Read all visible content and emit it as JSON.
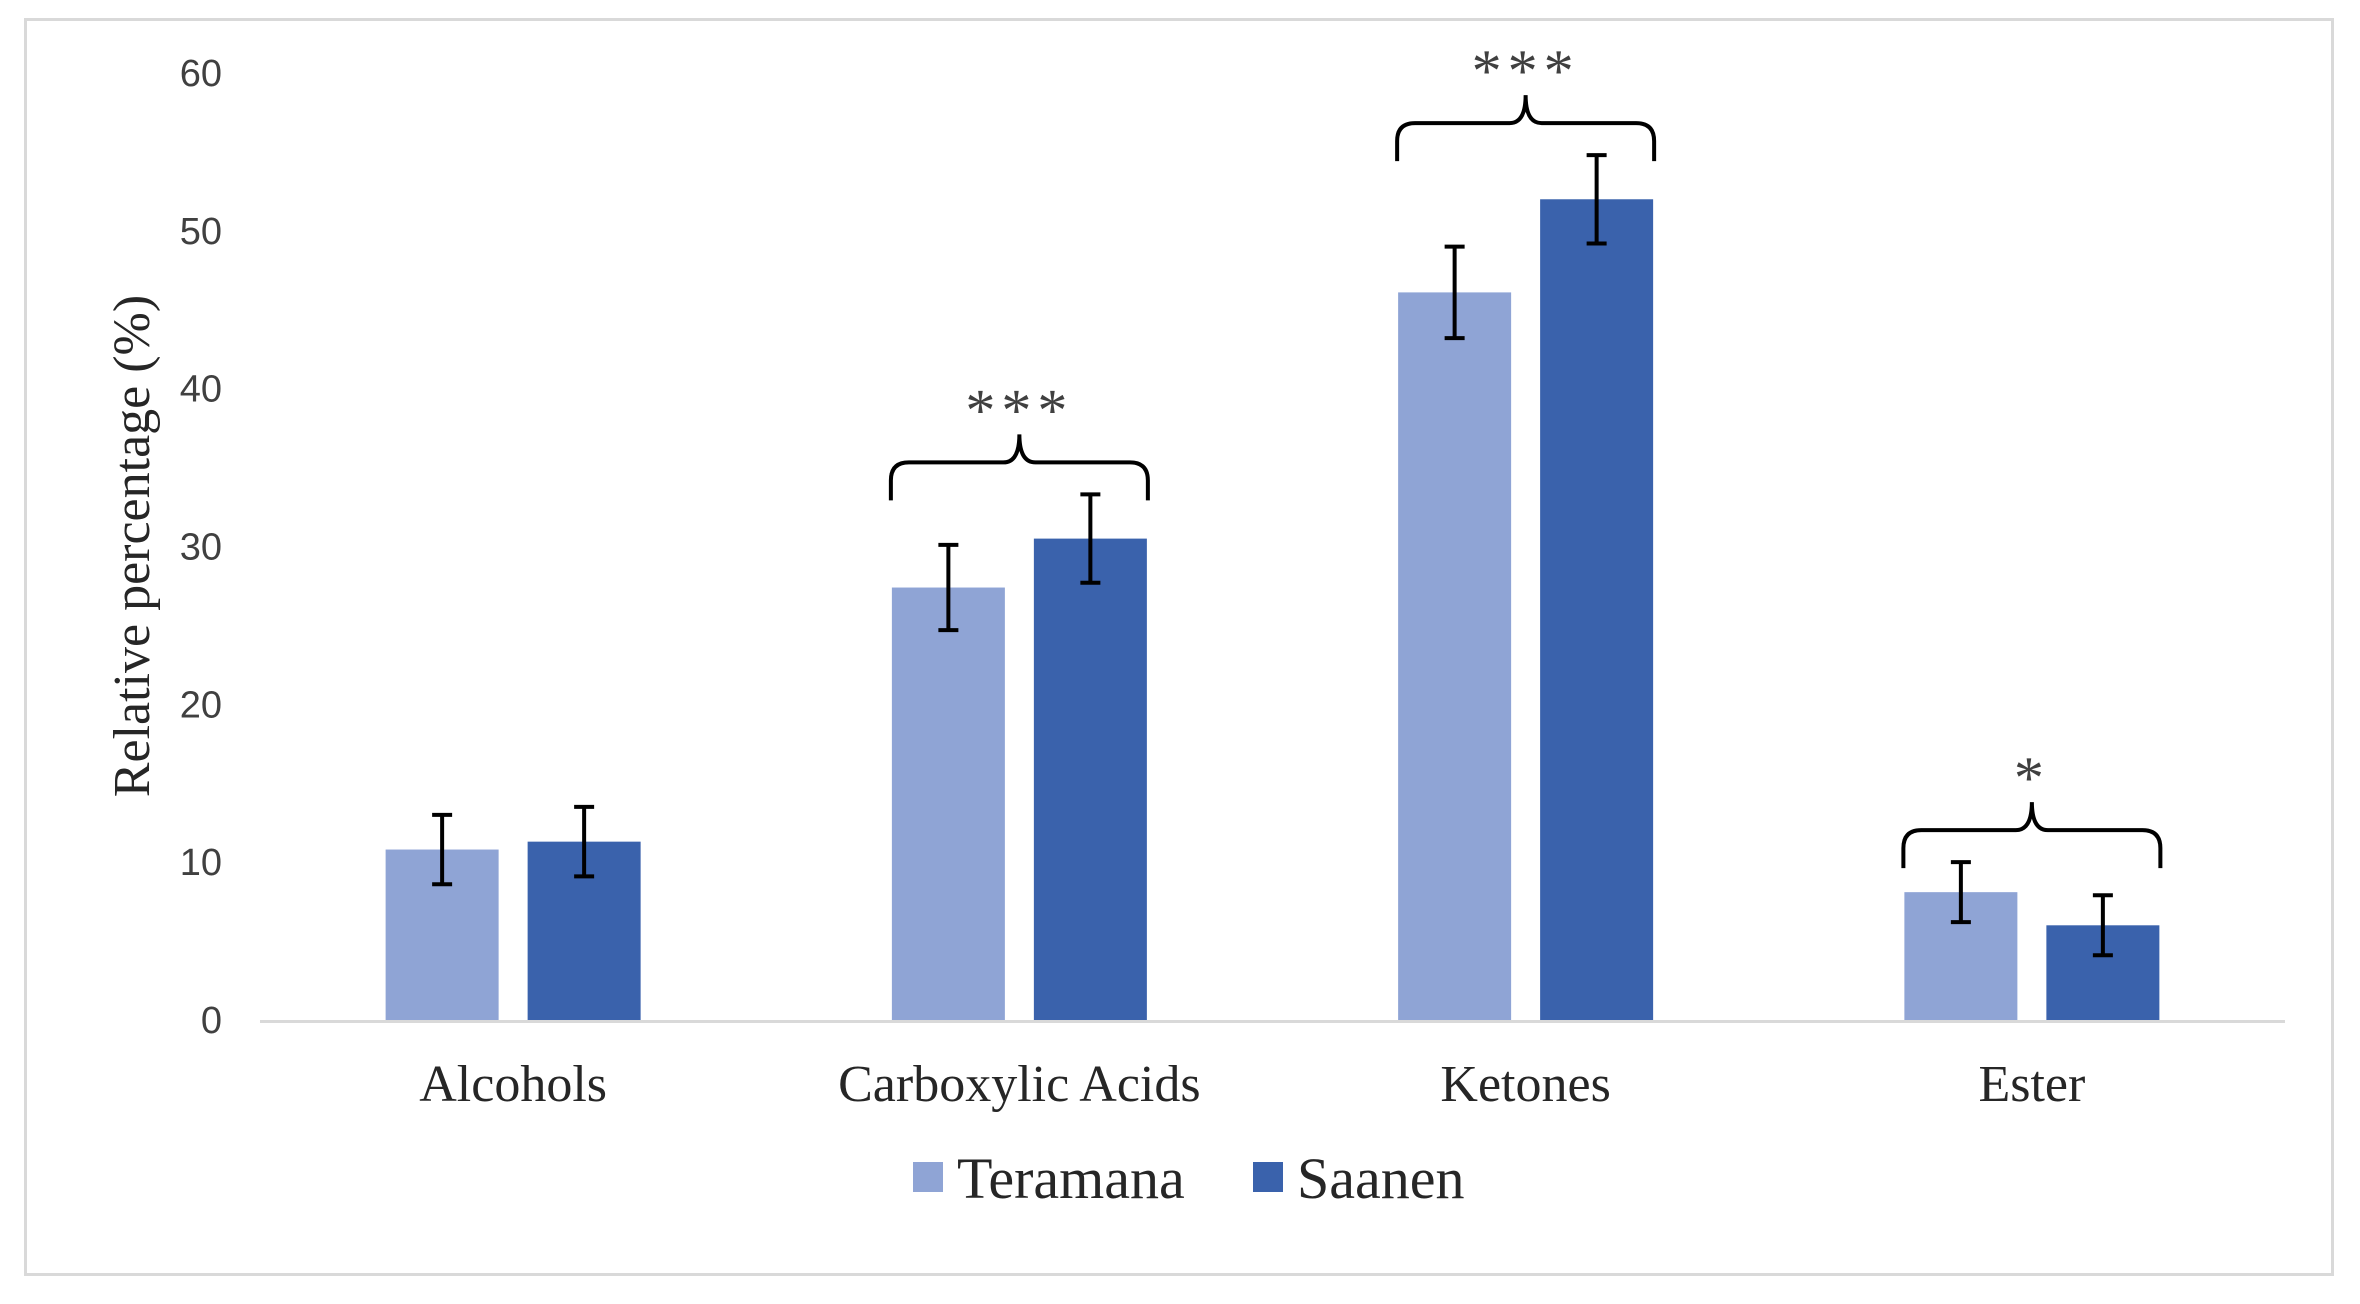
{
  "chart_data": {
    "type": "bar",
    "title": "",
    "xlabel": "",
    "ylabel": "Relative percentage (%)",
    "ylim": [
      0,
      60
    ],
    "yticks": [
      "0",
      "10",
      "20",
      "30",
      "40",
      "50",
      "60"
    ],
    "grid": false,
    "legend_position": "bottom",
    "categories": [
      "Alcohols",
      "Carboxylic Acids",
      "Ketones",
      "Ester"
    ],
    "series": [
      {
        "name": "Teramana",
        "color": "#8FA4D5",
        "values": [
          10.8,
          27.4,
          46.1,
          8.1
        ],
        "errors": [
          2.2,
          2.7,
          2.9,
          1.9
        ]
      },
      {
        "name": "Saanen",
        "color": "#3A62AC",
        "values": [
          11.3,
          30.5,
          52.0,
          6.0
        ],
        "errors": [
          2.2,
          2.8,
          2.8,
          1.9
        ]
      }
    ],
    "significance": [
      "",
      "***",
      "***",
      "*"
    ]
  }
}
